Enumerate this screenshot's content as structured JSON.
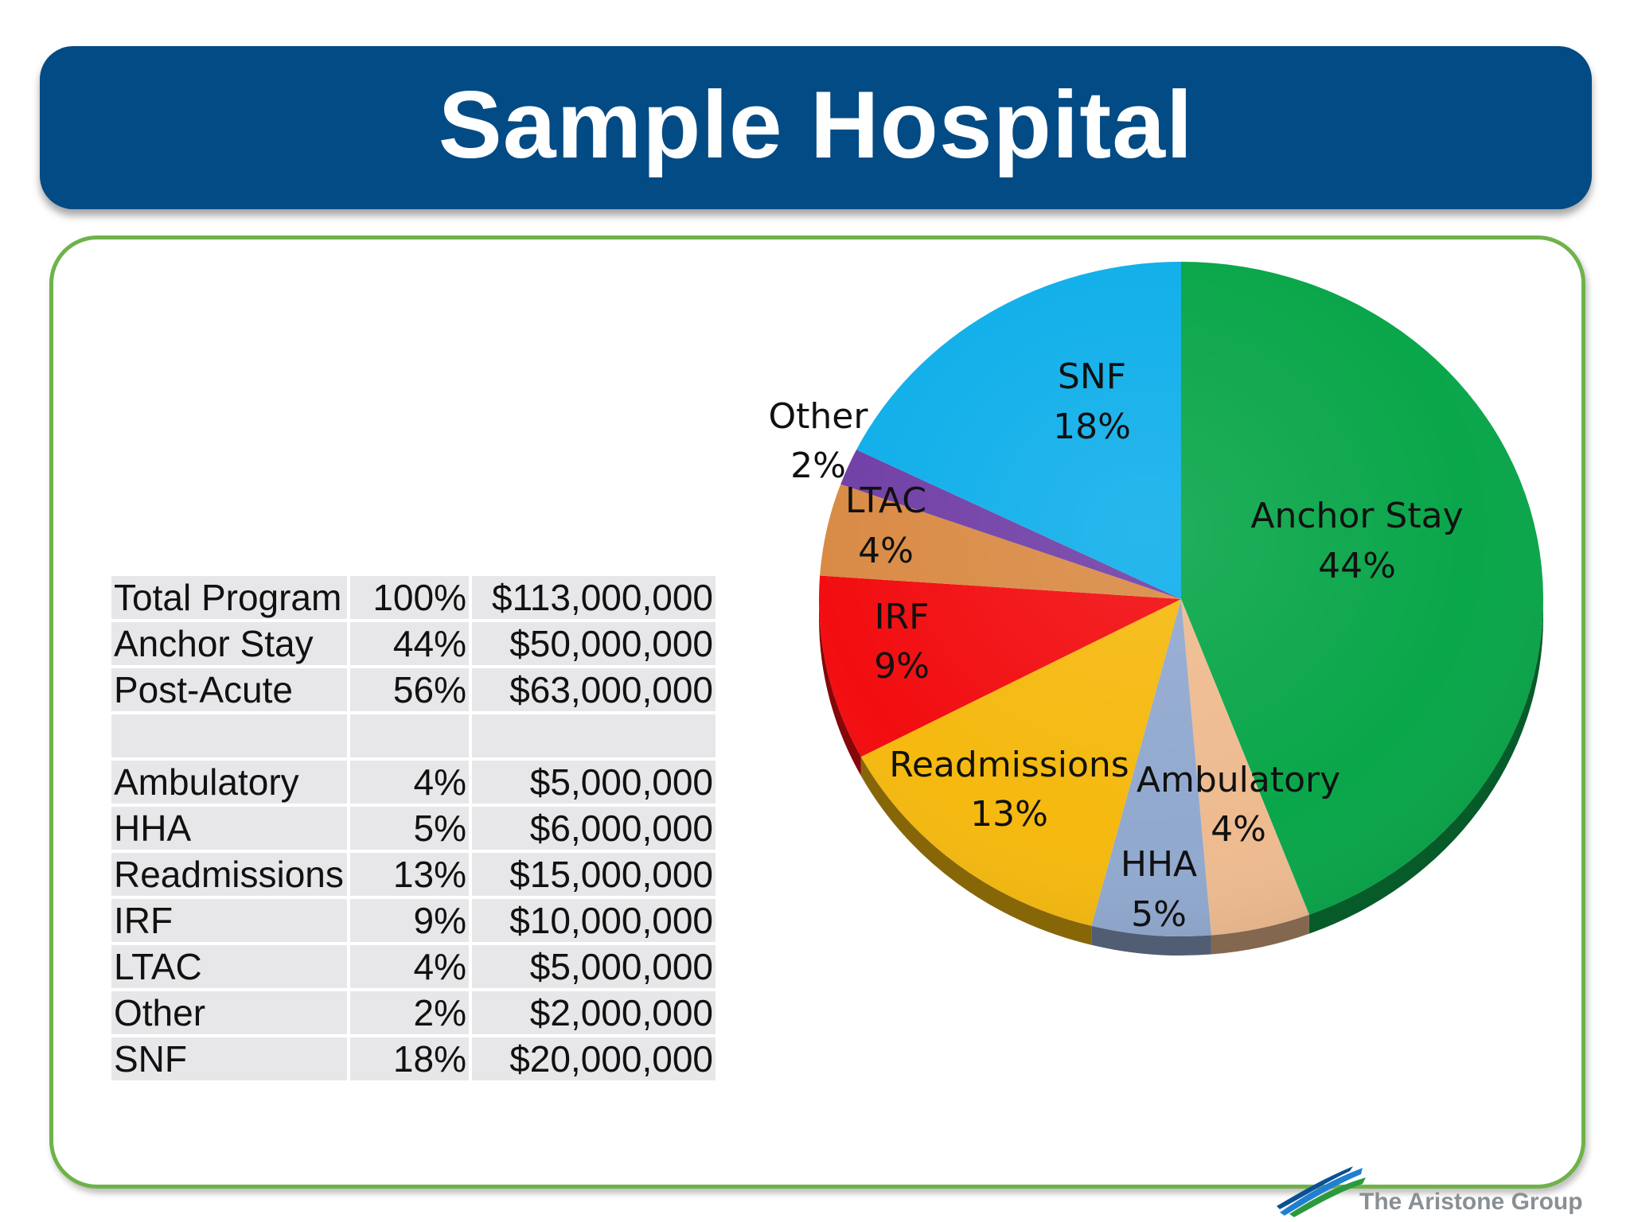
{
  "title": "Sample Hospital",
  "brand": {
    "logo_text": "The Aristone Group"
  },
  "table": {
    "rows": [
      {
        "label": "Total Program",
        "pct": "100%",
        "amount": "$113,000,000"
      },
      {
        "label": "Anchor Stay",
        "pct": "44%",
        "amount": "$50,000,000"
      },
      {
        "label": "Post-Acute",
        "pct": "56%",
        "amount": "$63,000,000"
      },
      {
        "label": "",
        "pct": "",
        "amount": ""
      },
      {
        "label": "Ambulatory",
        "pct": "4%",
        "amount": "$5,000,000"
      },
      {
        "label": "HHA",
        "pct": "5%",
        "amount": "$6,000,000"
      },
      {
        "label": "Readmissions",
        "pct": "13%",
        "amount": "$15,000,000"
      },
      {
        "label": "IRF",
        "pct": "9%",
        "amount": "$10,000,000"
      },
      {
        "label": "LTAC",
        "pct": "4%",
        "amount": "$5,000,000"
      },
      {
        "label": "Other",
        "pct": "2%",
        "amount": "$2,000,000"
      },
      {
        "label": "SNF",
        "pct": "18%",
        "amount": "$20,000,000"
      }
    ]
  },
  "chart_data": {
    "type": "pie",
    "slices": [
      {
        "name": "Anchor Stay",
        "label": "44%",
        "value": 50000000,
        "color": "#0aa64a"
      },
      {
        "name": "Ambulatory",
        "label": "4%",
        "value": 5000000,
        "color": "#eebb90"
      },
      {
        "name": "HHA",
        "label": "5%",
        "value": 6000000,
        "color": "#91a9cf"
      },
      {
        "name": "Readmissions",
        "label": "13%",
        "value": 15000000,
        "color": "#f5b90f"
      },
      {
        "name": "IRF",
        "label": "9%",
        "value": 10000000,
        "color": "#f20d10"
      },
      {
        "name": "LTAC",
        "label": "4%",
        "value": 5000000,
        "color": "#d98b45"
      },
      {
        "name": "Other",
        "label": "2%",
        "value": 2000000,
        "color": "#7140a6"
      },
      {
        "name": "SNF",
        "label": "18%",
        "value": 20000000,
        "color": "#10afea"
      }
    ],
    "start": "12 o'clock",
    "direction": "clockwise"
  }
}
